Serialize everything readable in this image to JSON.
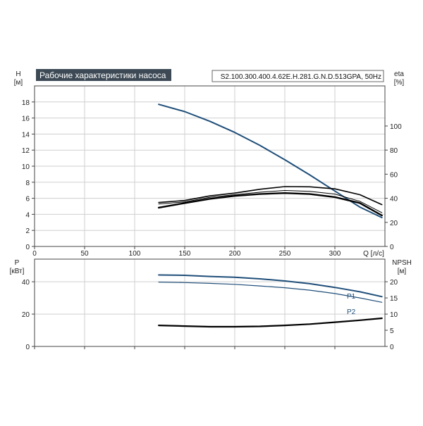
{
  "chart_data": [
    {
      "type": "line",
      "title": "Рабочие характеристики насоса",
      "model": "S2.100.300.400.4.62E.H.281.G.N.D.513GPA, 50Hz",
      "xlabel": "Q [л/с]",
      "xlim": [
        0,
        350
      ],
      "x_ticks": [
        0,
        50,
        100,
        150,
        200,
        250,
        300
      ],
      "grid": true,
      "left_axis": {
        "label": "H",
        "unit": "[м]",
        "ylim": [
          0,
          20
        ],
        "ticks": [
          0,
          2,
          4,
          6,
          8,
          10,
          12,
          14,
          16,
          18
        ]
      },
      "right_axis": {
        "label": "eta",
        "unit": "[%]",
        "ylim": [
          0,
          133.3
        ],
        "ticks": [
          0,
          20,
          40,
          60,
          80,
          100
        ]
      },
      "series": [
        {
          "axis": "left",
          "color": "#1f4e79",
          "x": [
            124,
            150,
            175,
            200,
            225,
            250,
            275,
            300,
            325,
            347
          ],
          "values": [
            17.7,
            16.8,
            15.6,
            14.2,
            12.6,
            10.8,
            8.9,
            6.9,
            4.9,
            3.6
          ]
        },
        {
          "axis": "right",
          "color": "#000000",
          "x": [
            124,
            150,
            175,
            200,
            225,
            250,
            275,
            300,
            325,
            347
          ],
          "values": [
            36.5,
            38.2,
            42,
            44.3,
            47.5,
            49.7,
            49.5,
            47.8,
            43,
            34.7
          ]
        },
        {
          "axis": "right",
          "color": "#000000",
          "x": [
            124,
            150,
            175,
            200,
            225,
            250,
            275,
            300,
            325,
            347
          ],
          "values": [
            35.2,
            37,
            40.8,
            43,
            45,
            46.5,
            45.7,
            43.5,
            37.5,
            28
          ]
        },
        {
          "axis": "right",
          "color": "#000000",
          "x": [
            124,
            150,
            175,
            200,
            225,
            250,
            275,
            300,
            325,
            347
          ],
          "values": [
            32.2,
            36,
            39.5,
            42,
            43.5,
            44.3,
            43.5,
            41,
            36,
            25.7
          ]
        }
      ]
    },
    {
      "type": "line",
      "xlim": [
        0,
        350
      ],
      "x_ticks": [
        0,
        50,
        100,
        150,
        200,
        250,
        300
      ],
      "grid": true,
      "left_axis": {
        "label": "P",
        "unit": "[кВт]",
        "ylim": [
          0,
          54
        ],
        "ticks": [
          0,
          20,
          40
        ]
      },
      "right_axis": {
        "label": "NPSH",
        "unit": "[м]",
        "ylim": [
          0,
          27
        ],
        "ticks": [
          0,
          5,
          10,
          15,
          20
        ]
      },
      "series": [
        {
          "name": "P1",
          "axis": "left",
          "color": "#1f4e79",
          "x": [
            124,
            150,
            175,
            200,
            225,
            250,
            275,
            300,
            325,
            347
          ],
          "values": [
            44.2,
            44,
            43.3,
            42.8,
            41.8,
            40.5,
            38.8,
            36.5,
            33.8,
            30.8
          ]
        },
        {
          "name": "P2",
          "axis": "left",
          "color": "#1f4e79",
          "x": [
            124,
            150,
            175,
            200,
            225,
            250,
            275,
            300,
            325,
            347
          ],
          "values": [
            39.8,
            39.5,
            39,
            38.4,
            37.4,
            36.3,
            34.8,
            32.7,
            30,
            27.3
          ]
        },
        {
          "axis": "right",
          "color": "#000000",
          "x": [
            124,
            150,
            175,
            200,
            225,
            250,
            275,
            300,
            325,
            347
          ],
          "values": [
            6.5,
            6.3,
            6.1,
            6.1,
            6.2,
            6.5,
            6.9,
            7.5,
            8.1,
            8.7
          ]
        }
      ]
    }
  ]
}
